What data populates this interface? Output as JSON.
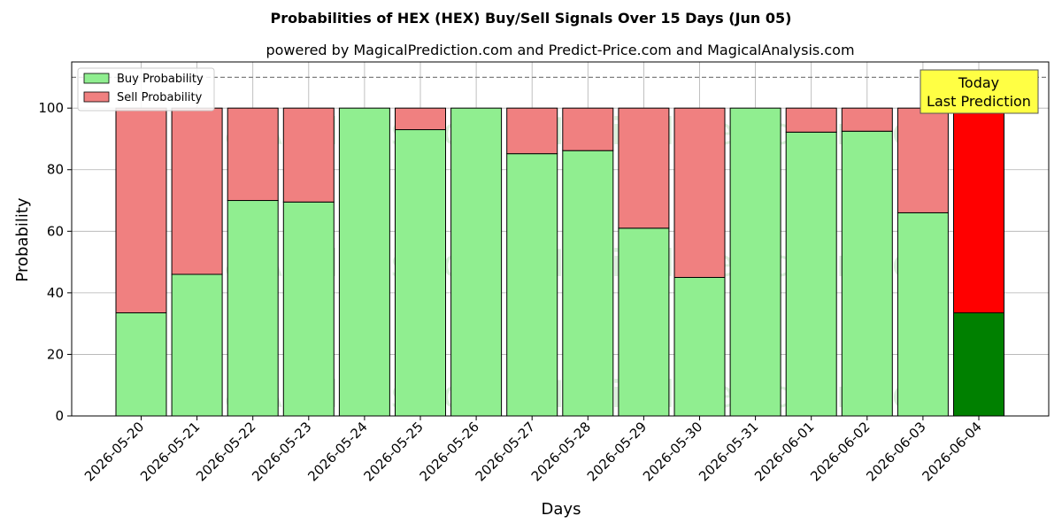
{
  "chart_data": {
    "type": "bar",
    "stacked": true,
    "title": "Probabilities of HEX (HEX) Buy/Sell Signals Over 15 Days (Jun 05)",
    "subtitle": "powered by MagicalPrediction.com and Predict-Price.com and MagicalAnalysis.com",
    "xlabel": "Days",
    "ylabel": "Probability",
    "ylim": [
      0,
      115
    ],
    "yticks": [
      0,
      20,
      40,
      60,
      80,
      100
    ],
    "reference_line": 110,
    "grid": true,
    "legend_position": "top-left",
    "categories": [
      "2026-05-20",
      "2026-05-21",
      "2026-05-22",
      "2026-05-23",
      "2026-05-24",
      "2026-05-25",
      "2026-05-26",
      "2026-05-27",
      "2026-05-28",
      "2026-05-29",
      "2026-05-30",
      "2026-05-31",
      "2026-06-01",
      "2026-06-02",
      "2026-06-03",
      "2026-06-04"
    ],
    "series": [
      {
        "name": "Buy Probability",
        "color": "#90ee90",
        "highlight_color": "#008000",
        "values": [
          33.5,
          46,
          70,
          69.5,
          100,
          93,
          100,
          85.2,
          86.2,
          61,
          45,
          100,
          92.2,
          92.5,
          66,
          33.5
        ]
      },
      {
        "name": "Sell Probability",
        "color": "#f08080",
        "highlight_color": "#ff0000",
        "values": [
          66.5,
          54,
          30,
          30.5,
          0,
          7,
          0,
          14.8,
          13.8,
          39,
          55,
          0,
          7.8,
          7.5,
          34,
          66.5
        ]
      }
    ],
    "highlight_index": 15,
    "annotation": {
      "line1": "Today",
      "line2": "Last Prediction",
      "background": "#ffff44"
    },
    "watermarks": [
      "MagicalAnalysis.com",
      "MagicalPrediction.com"
    ]
  }
}
